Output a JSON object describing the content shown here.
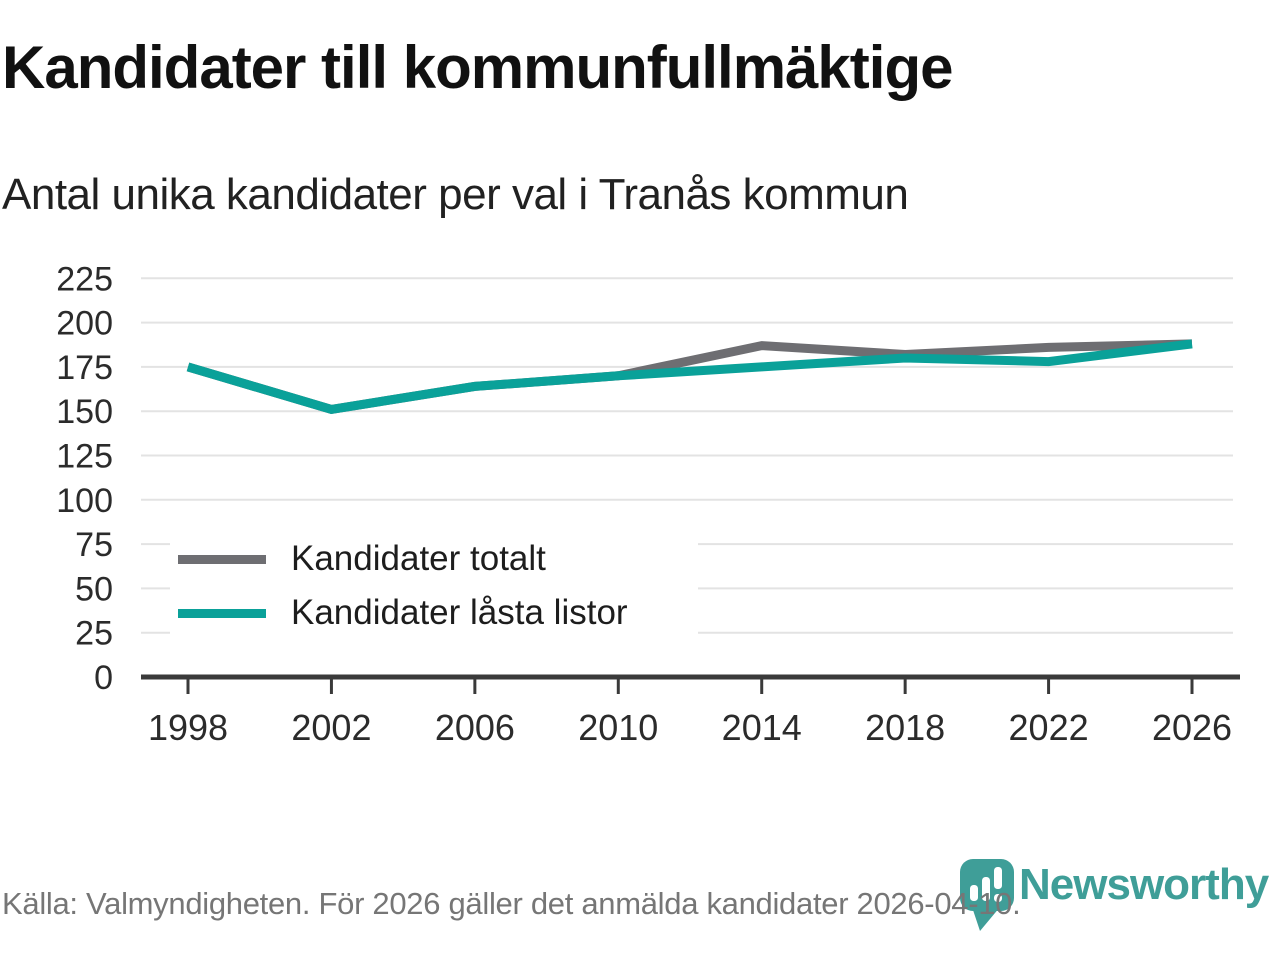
{
  "title": "Kandidater till kommunfullmäktige",
  "subtitle": "Antal unika kandidater per val i Tranås kommun",
  "source": "Källa: Valmyndigheten. För 2026 gäller det anmälda kandidater 2026-04-10.",
  "logo": {
    "wordmark": "Newsworthy",
    "icon": "newsworthy-pin-barchart-icon",
    "color": "#3f9e98"
  },
  "colors": {
    "series_total": "#6e6e72",
    "series_locked": "#0aa199",
    "gridline": "#e3e3e3",
    "axis": "#3a3a3a",
    "tick_label": "#2b2b2b",
    "source_text": "#767676",
    "background": "#ffffff"
  },
  "legend": {
    "items": [
      {
        "label": "Kandidater totalt"
      },
      {
        "label": "Kandidater låsta listor"
      }
    ]
  },
  "chart_data": {
    "type": "line",
    "x": [
      1998,
      2002,
      2006,
      2010,
      2014,
      2018,
      2022,
      2026
    ],
    "series": [
      {
        "name": "Kandidater totalt",
        "color": "#6e6e72",
        "values": [
          175,
          151,
          164,
          170,
          187,
          182,
          186,
          188
        ]
      },
      {
        "name": "Kandidater låsta listor",
        "color": "#0aa199",
        "values": [
          175,
          151,
          164,
          170,
          175,
          180,
          178,
          188
        ]
      }
    ],
    "title": "Kandidater till kommunfullmäktige",
    "subtitle": "Antal unika kandidater per val i Tranås kommun",
    "xlabel": "",
    "ylabel": "",
    "ylim": [
      0,
      225
    ],
    "ytick_step": 25,
    "yticks": [
      0,
      25,
      50,
      75,
      100,
      125,
      150,
      175,
      200,
      225
    ],
    "grid": "horizontal",
    "legend_position": "inside-left-middle"
  }
}
